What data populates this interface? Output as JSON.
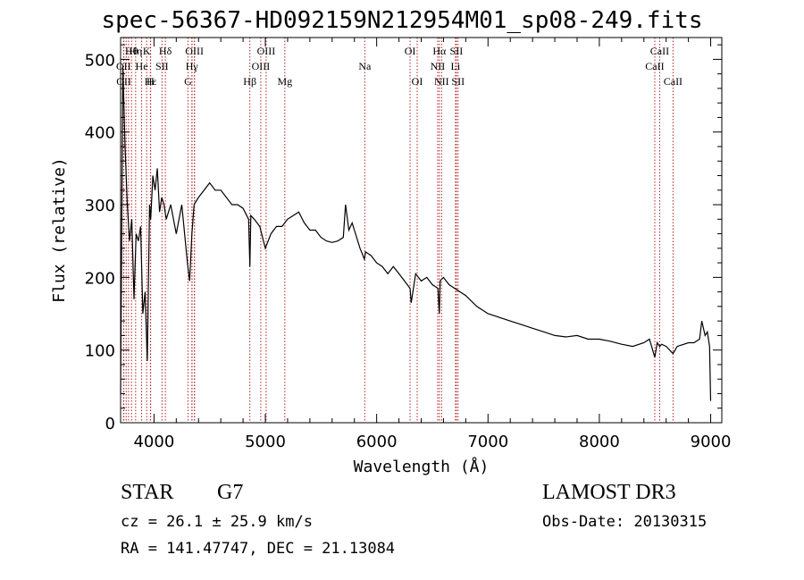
{
  "chart_data": {
    "type": "line",
    "title": "spec-56367-HD092159N212954M01_sp08-249.fits",
    "xlabel": "Wavelength (Å)",
    "ylabel": "Flux (relative)",
    "xlim": [
      3700,
      9100
    ],
    "ylim": [
      0,
      530
    ],
    "xticks": [
      4000,
      5000,
      6000,
      7000,
      8000,
      9000
    ],
    "yticks": [
      0,
      100,
      200,
      300,
      400,
      500
    ],
    "series": [
      {
        "name": "flux",
        "x": [
          3700,
          3720,
          3740,
          3760,
          3780,
          3800,
          3820,
          3840,
          3860,
          3880,
          3900,
          3920,
          3940,
          3960,
          3970,
          3990,
          4010,
          4030,
          4050,
          4070,
          4090,
          4110,
          4150,
          4200,
          4250,
          4300,
          4320,
          4340,
          4360,
          4400,
          4450,
          4500,
          4550,
          4600,
          4650,
          4700,
          4750,
          4800,
          4850,
          4861,
          4870,
          4900,
          4950,
          5000,
          5050,
          5100,
          5150,
          5200,
          5250,
          5300,
          5350,
          5400,
          5450,
          5500,
          5550,
          5600,
          5650,
          5700,
          5720,
          5750,
          5780,
          5800,
          5850,
          5890,
          5900,
          5950,
          6000,
          6050,
          6100,
          6150,
          6200,
          6250,
          6300,
          6310,
          6350,
          6400,
          6450,
          6500,
          6550,
          6563,
          6570,
          6600,
          6650,
          6700,
          6800,
          6900,
          7000,
          7100,
          7200,
          7300,
          7400,
          7500,
          7600,
          7700,
          7800,
          7900,
          8000,
          8100,
          8200,
          8300,
          8400,
          8450,
          8498,
          8520,
          8542,
          8560,
          8600,
          8662,
          8700,
          8800,
          8850,
          8900,
          8920,
          8950,
          8970,
          8990,
          9000
        ],
        "values": [
          40,
          490,
          380,
          300,
          250,
          280,
          170,
          260,
          250,
          270,
          150,
          180,
          85,
          300,
          280,
          340,
          320,
          350,
          290,
          310,
          300,
          280,
          300,
          260,
          300,
          220,
          195,
          260,
          300,
          310,
          320,
          330,
          320,
          320,
          310,
          300,
          300,
          295,
          280,
          215,
          285,
          280,
          270,
          240,
          260,
          270,
          270,
          280,
          285,
          290,
          275,
          265,
          265,
          255,
          250,
          248,
          250,
          255,
          300,
          265,
          275,
          265,
          240,
          225,
          235,
          230,
          220,
          215,
          205,
          215,
          205,
          195,
          185,
          165,
          205,
          195,
          200,
          190,
          185,
          150,
          195,
          200,
          190,
          185,
          175,
          160,
          150,
          145,
          140,
          135,
          130,
          125,
          120,
          118,
          120,
          115,
          115,
          112,
          108,
          105,
          110,
          115,
          90,
          110,
          105,
          108,
          105,
          95,
          105,
          110,
          110,
          115,
          140,
          120,
          125,
          105,
          30
        ]
      }
    ],
    "lines_row1": [
      {
        "label": "Hθ",
        "x": 3798
      },
      {
        "label": "Hη",
        "x": 3835
      },
      {
        "label": "K",
        "x": 3934
      },
      {
        "label": "Hδ",
        "x": 4102
      },
      {
        "label": "OIII",
        "x": 4363
      },
      {
        "label": "OIII",
        "x": 5007
      },
      {
        "label": "OI",
        "x": 6300
      },
      {
        "label": "Hα",
        "x": 6563
      },
      {
        "label": "SII",
        "x": 6716
      },
      {
        "label": "CaII",
        "x": 8542
      }
    ],
    "lines_row2": [
      {
        "label": "OII",
        "x": 3727
      },
      {
        "label": "He",
        "x": 3889
      },
      {
        "label": "SII",
        "x": 4072
      },
      {
        "label": "Hγ",
        "x": 4340
      },
      {
        "label": "OIII",
        "x": 4959
      },
      {
        "label": "Na",
        "x": 5893
      },
      {
        "label": "NII",
        "x": 6548
      },
      {
        "label": "Li",
        "x": 6708
      },
      {
        "label": "CaII",
        "x": 8498
      }
    ],
    "lines_row3": [
      {
        "label": "OII",
        "x": 3729
      },
      {
        "label": "Hε",
        "x": 3970
      },
      {
        "label": "H",
        "x": 3968
      },
      {
        "label": "G",
        "x": 4305
      },
      {
        "label": "Hβ",
        "x": 4861
      },
      {
        "label": "Mg",
        "x": 5175
      },
      {
        "label": "OI",
        "x": 6364
      },
      {
        "label": "NII",
        "x": 6583
      },
      {
        "label": "SII",
        "x": 6731
      },
      {
        "label": "CaII",
        "x": 8662
      }
    ],
    "extra_marker_x": [
      3750,
      3771,
      3889,
      4342,
      4364,
      6548,
      6563,
      6583,
      6716,
      6731
    ]
  },
  "info": {
    "class_label": "STAR",
    "subclass": "G7",
    "survey": "LAMOST DR3",
    "cz": "cz = 26.1 ± 25.9 km/s",
    "obs_date": "Obs-Date: 20130315",
    "coords": "RA = 141.47747, DEC =  21.13084"
  }
}
